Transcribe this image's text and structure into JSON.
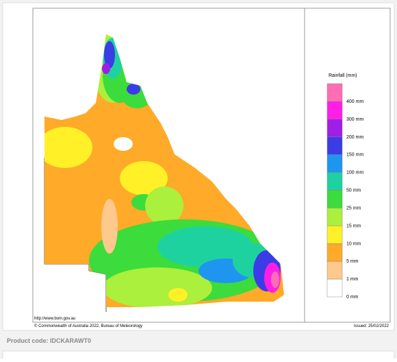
{
  "map": {
    "url": "http://www.bom.gov.au",
    "copyright": "© Commonwealth of Australia 2022, Bureau of Meteorology",
    "issued": "Issued: 25/02/2022"
  },
  "legend": {
    "title": "Rainfall (mm)",
    "items": [
      {
        "label": "400 mm",
        "color": "#ff6eb4"
      },
      {
        "label": "300 mm",
        "color": "#ff1ee6"
      },
      {
        "label": "200 mm",
        "color": "#a01ee6"
      },
      {
        "label": "150 mm",
        "color": "#3c3ce6"
      },
      {
        "label": "100 mm",
        "color": "#1e96f0"
      },
      {
        "label": "50 mm",
        "color": "#1ed2a0"
      },
      {
        "label": "25 mm",
        "color": "#3cdc3c"
      },
      {
        "label": "15 mm",
        "color": "#aaf03c"
      },
      {
        "label": "10 mm",
        "color": "#fff028"
      },
      {
        "label": "5 mm",
        "color": "#ffaa28"
      },
      {
        "label": "1 mm",
        "color": "#ffc88c"
      },
      {
        "label": "0 mm",
        "color": "#ffffff"
      }
    ]
  },
  "footer": {
    "product_code": "Product code: IDCKARAWT0"
  }
}
